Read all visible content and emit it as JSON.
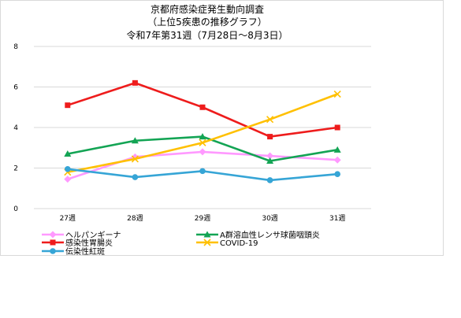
{
  "chart_data": {
    "type": "line",
    "title_lines": [
      "京都府感染症発生動向調査",
      "（上位5疾患の推移グラフ）",
      "令和7年第31週（7月28日～8月3日）"
    ],
    "xlabel": "",
    "ylabel": "",
    "categories": [
      "27週",
      "28週",
      "29週",
      "30週",
      "31週"
    ],
    "ylim": [
      0,
      8
    ],
    "yticks": [
      "0",
      "2",
      "4",
      "6",
      "8"
    ],
    "grid": "horizontal",
    "legend_position": "bottom",
    "series": [
      {
        "name": "ヘルパンギーナ",
        "color": "#ff99ff",
        "marker": "diamond",
        "values": [
          1.45,
          2.55,
          2.8,
          2.6,
          2.4
        ]
      },
      {
        "name": "A群溶血性レンサ球菌咽頭炎",
        "color": "#13a454",
        "marker": "triangle",
        "values": [
          2.7,
          3.35,
          3.55,
          2.35,
          2.9
        ]
      },
      {
        "name": "感染性胃腸炎",
        "color": "#ee1c1c",
        "marker": "square",
        "values": [
          5.1,
          6.2,
          5.0,
          3.55,
          4.0
        ]
      },
      {
        "name": "COVID-19",
        "color": "#ffc000",
        "marker": "x",
        "values": [
          1.8,
          2.45,
          3.25,
          4.4,
          5.65
        ]
      },
      {
        "name": "伝染性紅斑",
        "color": "#36a5d6",
        "marker": "circle",
        "values": [
          1.95,
          1.55,
          1.85,
          1.4,
          1.7
        ]
      }
    ]
  }
}
